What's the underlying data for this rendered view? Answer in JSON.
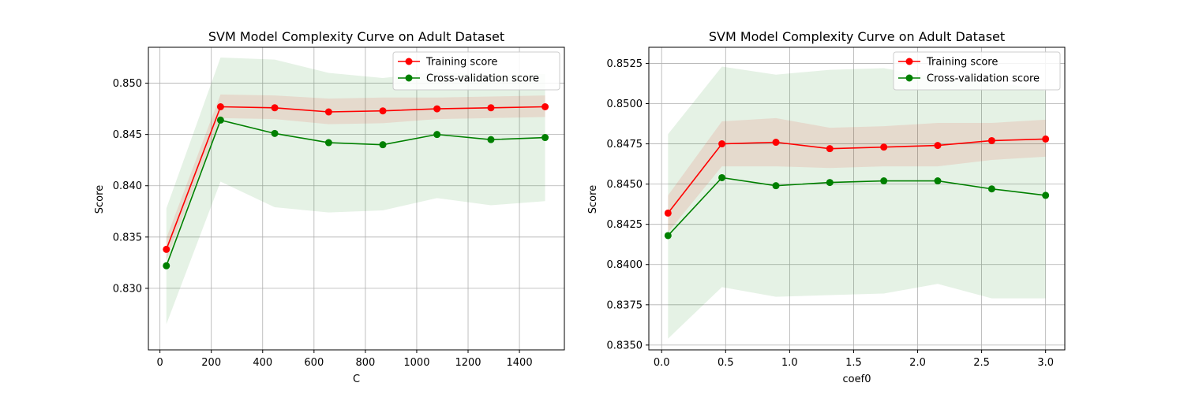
{
  "chart_data": [
    {
      "type": "line",
      "title": "SVM Model Complexity Curve on Adult Dataset",
      "xlabel": "C",
      "ylabel": "Score",
      "xlim": [
        -45,
        1575
      ],
      "ylim": [
        0.824,
        0.8535
      ],
      "xticks": [
        0,
        200,
        400,
        600,
        800,
        1000,
        1200,
        1400
      ],
      "xtick_labels": [
        "0",
        "200",
        "400",
        "600",
        "800",
        "1000",
        "1200",
        "1400"
      ],
      "yticks": [
        0.83,
        0.835,
        0.84,
        0.845,
        0.85
      ],
      "ytick_labels": [
        "0.830",
        "0.835",
        "0.840",
        "0.845",
        "0.850"
      ],
      "grid": true,
      "legend_position": "upper right",
      "x": [
        25,
        236,
        447,
        657,
        868,
        1079,
        1289,
        1500
      ],
      "series": [
        {
          "name": "Training score",
          "color": "#ff0000",
          "values": [
            0.8338,
            0.8477,
            0.8476,
            0.8472,
            0.8473,
            0.8475,
            0.8476,
            0.8477
          ],
          "band_lower": [
            0.8328,
            0.8466,
            0.8465,
            0.846,
            0.8461,
            0.8465,
            0.8466,
            0.8467
          ],
          "band_upper": [
            0.8349,
            0.8489,
            0.8488,
            0.8485,
            0.8486,
            0.8486,
            0.8487,
            0.8488
          ]
        },
        {
          "name": "Cross-validation score",
          "color": "#008000",
          "values": [
            0.8322,
            0.8464,
            0.8451,
            0.8442,
            0.844,
            0.845,
            0.8445,
            0.8447
          ],
          "band_lower": [
            0.8265,
            0.8404,
            0.8379,
            0.8374,
            0.8376,
            0.8388,
            0.8381,
            0.8385
          ],
          "band_upper": [
            0.8378,
            0.8525,
            0.8523,
            0.851,
            0.8505,
            0.8511,
            0.8508,
            0.8509
          ]
        }
      ]
    },
    {
      "type": "line",
      "title": "SVM Model Complexity Curve on Adult Dataset",
      "xlabel": "coef0",
      "ylabel": "Score",
      "xlim": [
        -0.1,
        3.15
      ],
      "ylim": [
        0.8347,
        0.8535
      ],
      "xticks": [
        0,
        0.5,
        1.0,
        1.5,
        2.0,
        2.5,
        3.0
      ],
      "xtick_labels": [
        "0.0",
        "0.5",
        "1.0",
        "1.5",
        "2.0",
        "2.5",
        "3.0"
      ],
      "yticks": [
        0.835,
        0.8375,
        0.84,
        0.8425,
        0.845,
        0.8475,
        0.85,
        0.8525
      ],
      "ytick_labels": [
        "0.8350",
        "0.8375",
        "0.8400",
        "0.8425",
        "0.8450",
        "0.8475",
        "0.8500",
        "0.8525"
      ],
      "grid": true,
      "legend_position": "upper right",
      "x": [
        0.05,
        0.471,
        0.893,
        1.314,
        1.736,
        2.157,
        2.579,
        3.0
      ],
      "series": [
        {
          "name": "Training score",
          "color": "#ff0000",
          "values": [
            0.8432,
            0.8475,
            0.8476,
            0.8472,
            0.8473,
            0.8474,
            0.8477,
            0.8478
          ],
          "band_lower": [
            0.842,
            0.8461,
            0.8461,
            0.846,
            0.8461,
            0.8461,
            0.8465,
            0.8467
          ],
          "band_upper": [
            0.8443,
            0.8489,
            0.8491,
            0.8485,
            0.8486,
            0.8488,
            0.8488,
            0.849
          ]
        },
        {
          "name": "Cross-validation score",
          "color": "#008000",
          "values": [
            0.8418,
            0.8454,
            0.8449,
            0.8451,
            0.8452,
            0.8452,
            0.8447,
            0.8443
          ],
          "band_lower": [
            0.8354,
            0.8386,
            0.838,
            0.8381,
            0.8382,
            0.8388,
            0.8379,
            0.8379
          ],
          "band_upper": [
            0.8481,
            0.8523,
            0.8518,
            0.8521,
            0.8522,
            0.8516,
            0.8514,
            0.8508
          ]
        }
      ]
    }
  ]
}
